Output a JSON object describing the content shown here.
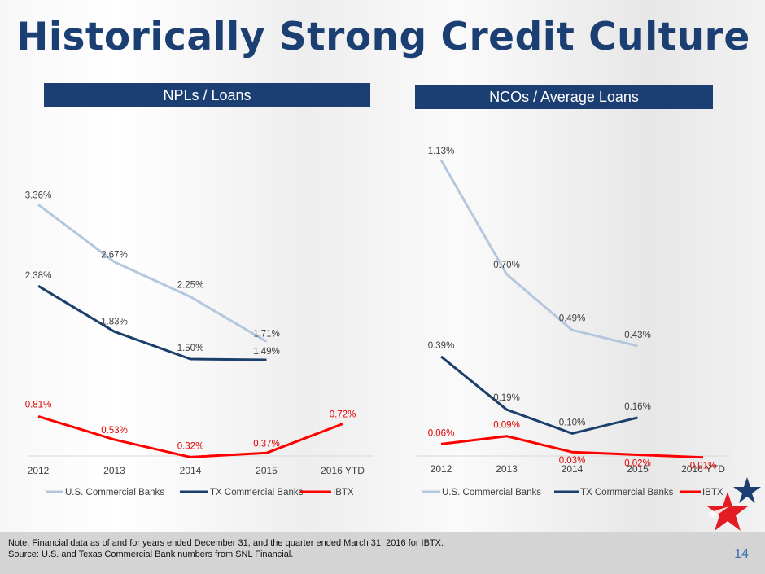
{
  "title": "Historically Strong Credit Culture",
  "headers": {
    "left": "NPLs / Loans",
    "right": "NCOs / Average Loans"
  },
  "footer": {
    "note": "Note: Financial data as of and for years ended December 31, and the quarter ended March 31, 2016 for IBTX.",
    "source": "Source: U.S. and Texas Commercial Bank numbers from SNL Financial.",
    "page": "14"
  },
  "colors": {
    "us": "#b5c7de",
    "tx": "#1b3f6b",
    "ibtx": "#ff0000",
    "header_bg": "#1b3f73"
  },
  "chart_data": [
    {
      "type": "line",
      "title": "NPLs / Loans",
      "categories": [
        "2012",
        "2013",
        "2014",
        "2015",
        "2016 YTD"
      ],
      "series": [
        {
          "name": "U.S. Commercial Banks",
          "values": [
            3.36,
            2.67,
            2.25,
            1.71,
            null
          ],
          "labels": [
            "3.36%",
            "2.67%",
            "2.25%",
            "1.71%",
            ""
          ]
        },
        {
          "name": "TX Commercial Banks",
          "values": [
            2.38,
            1.83,
            1.5,
            1.49,
            null
          ],
          "labels": [
            "2.38%",
            "1.83%",
            "1.50%",
            "1.49%",
            ""
          ]
        },
        {
          "name": "IBTX",
          "values": [
            0.81,
            0.53,
            0.32,
            0.37,
            0.72
          ],
          "labels": [
            "0.81%",
            "0.53%",
            "0.32%",
            "0.37%",
            "0.72%"
          ]
        }
      ],
      "ylim": [
        0,
        4
      ],
      "grid": false,
      "legend": "bottom"
    },
    {
      "type": "line",
      "title": "NCOs / Average Loans",
      "categories": [
        "2012",
        "2013",
        "2014",
        "2015",
        "2016 YTD"
      ],
      "series": [
        {
          "name": "U.S. Commercial Banks",
          "values": [
            1.13,
            0.7,
            0.49,
            0.43,
            null
          ],
          "labels": [
            "1.13%",
            "0.70%",
            "0.49%",
            "0.43%",
            ""
          ]
        },
        {
          "name": "TX Commercial Banks",
          "values": [
            0.39,
            0.19,
            0.1,
            0.16,
            null
          ],
          "labels": [
            "0.39%",
            "0.19%",
            "0.10%",
            "0.16%",
            ""
          ]
        },
        {
          "name": "IBTX",
          "values": [
            0.06,
            0.09,
            0.03,
            0.02,
            0.01
          ],
          "labels": [
            "0.06%",
            "0.09%",
            "0.03%",
            "0.02%",
            "0.01%"
          ]
        }
      ],
      "ylim": [
        0,
        1.2
      ],
      "grid": false,
      "legend": "bottom"
    }
  ]
}
